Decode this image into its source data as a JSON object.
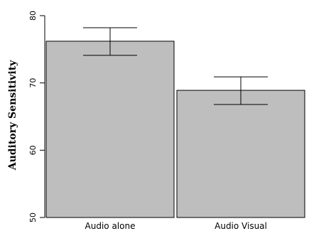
{
  "chart_data": {
    "type": "bar",
    "categories": [
      "Audio alone",
      "Audio Visual"
    ],
    "values": [
      76.2,
      68.9
    ],
    "error_low": [
      74.1,
      66.8
    ],
    "error_high": [
      78.2,
      70.9
    ],
    "ylabel": "Auditory Sensitivity",
    "xlabel": "",
    "ylim": [
      50,
      80
    ],
    "yticks": [
      50,
      60,
      70,
      80
    ],
    "bar_color": "#bebebe",
    "outline_color": "#000000",
    "grid": false
  }
}
